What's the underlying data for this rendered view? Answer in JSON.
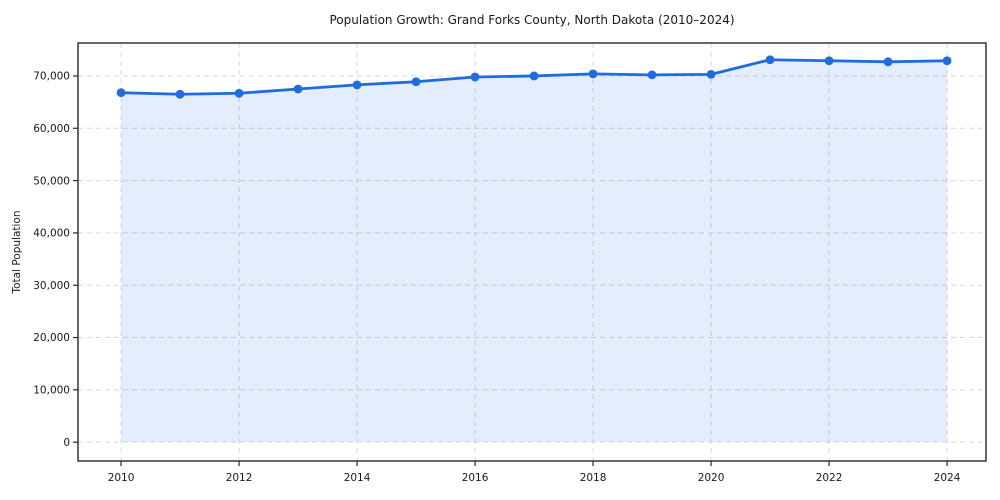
{
  "chart": {
    "title": "Population Growth: Grand Forks County, North Dakota (2010–2024)",
    "ylabel": "Total Population"
  },
  "chart_data": {
    "type": "area",
    "title": "Population Growth: Grand Forks County, North Dakota (2010–2024)",
    "xlabel": "",
    "ylabel": "Total Population",
    "x": [
      2010,
      2011,
      2012,
      2013,
      2014,
      2015,
      2016,
      2017,
      2018,
      2019,
      2020,
      2021,
      2022,
      2023,
      2024
    ],
    "series": [
      {
        "name": "Total Population",
        "values": [
          66800,
          66500,
          66700,
          67500,
          68300,
          68900,
          69800,
          70000,
          70400,
          70200,
          70300,
          73100,
          72900,
          72700,
          72900
        ]
      }
    ],
    "x_ticks": [
      2010,
      2012,
      2014,
      2016,
      2018,
      2020,
      2022,
      2024
    ],
    "x_tick_labels": [
      "2010",
      "2012",
      "2014",
      "2016",
      "2018",
      "2020",
      "2022",
      "2024"
    ],
    "y_ticks": [
      0,
      10000,
      20000,
      30000,
      40000,
      50000,
      60000,
      70000
    ],
    "y_tick_labels": [
      "0",
      "10,000",
      "20,000",
      "30,000",
      "40,000",
      "50,000",
      "60,000",
      "70,000"
    ],
    "xlim": [
      2009.27,
      2024.66
    ],
    "ylim": [
      -3600,
      76300
    ],
    "grid": true,
    "grid_style": "dashed",
    "legend": "none",
    "markers": true,
    "line_color": "#1f6ce0",
    "marker_color": "#1f6ce0",
    "fill_color": "rgba(31,108,224,0.12)",
    "grid_color": "#d9d9d9",
    "axis_color": "#262626",
    "text_color": "#1a1a1a",
    "background_color": "#ffffff"
  }
}
